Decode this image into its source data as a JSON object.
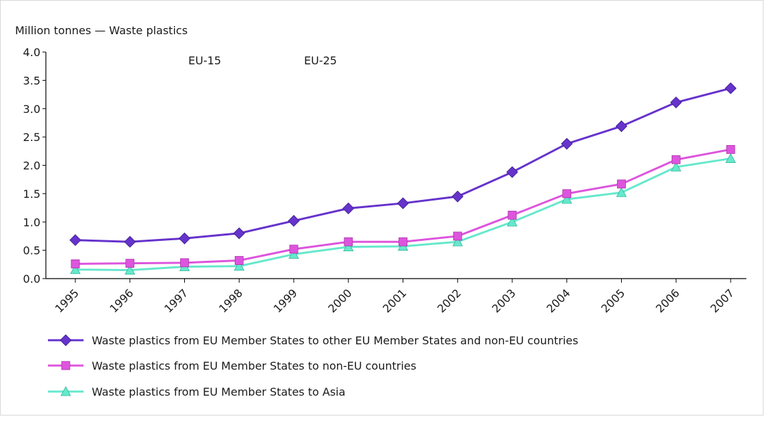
{
  "chart_data": {
    "type": "line",
    "unit_label": "Million tonnes — Waste plastics",
    "period_labels": [
      "EU-15",
      "EU-25"
    ],
    "categories": [
      "1995",
      "1996",
      "1997",
      "1998",
      "1999",
      "2000",
      "2001",
      "2002",
      "2003",
      "2004",
      "2005",
      "2006",
      "2007"
    ],
    "yticks": [
      "0.0",
      "0.5",
      "1.0",
      "1.5",
      "2.0",
      "2.5",
      "3.0",
      "3.5",
      "4.0"
    ],
    "ylim": [
      0,
      4
    ],
    "grid": false,
    "legend_position": "bottom",
    "series": [
      {
        "name": "Waste plastics from EU Member States to other EU Member States and non-EU countries",
        "color": "#6633cc",
        "marker": "diamond",
        "values": [
          0.68,
          0.65,
          0.71,
          0.8,
          1.02,
          1.24,
          1.33,
          1.45,
          1.88,
          2.38,
          2.69,
          3.11,
          3.36
        ]
      },
      {
        "name": "Waste plastics from EU Member States to non-EU countries",
        "color": "#dd55dd",
        "marker": "square",
        "values": [
          0.26,
          0.27,
          0.28,
          0.32,
          0.52,
          0.65,
          0.65,
          0.75,
          1.12,
          1.5,
          1.67,
          2.1,
          2.28
        ]
      },
      {
        "name": "Waste plastics from EU Member States to Asia",
        "color": "#66e8cc",
        "marker": "triangle",
        "values": [
          0.16,
          0.15,
          0.21,
          0.22,
          0.43,
          0.56,
          0.57,
          0.65,
          1.0,
          1.4,
          1.52,
          1.97,
          2.12
        ]
      }
    ]
  }
}
